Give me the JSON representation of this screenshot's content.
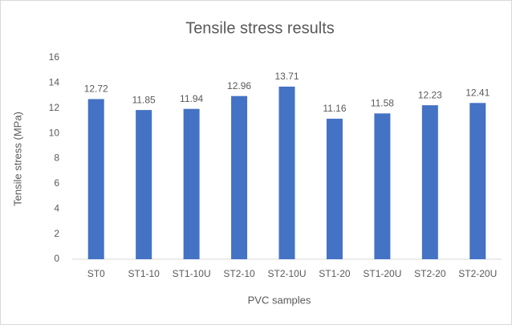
{
  "chart_data": {
    "type": "bar",
    "title": "Tensile stress results",
    "x_label": "PVC samples",
    "y_label": "Tensile stress (MPa)",
    "categories": [
      "ST0",
      "ST1-10",
      "ST1-10U",
      "ST2-10",
      "ST2-10U",
      "ST1-20",
      "ST1-20U",
      "ST2-20",
      "ST2-20U"
    ],
    "values": [
      12.72,
      11.85,
      11.94,
      12.96,
      13.71,
      11.16,
      11.58,
      12.23,
      12.41
    ],
    "color": "#4472c4",
    "ylim": [
      0,
      16
    ],
    "yticks": [
      0,
      2,
      4,
      6,
      8,
      10,
      12,
      14,
      16
    ],
    "grid": false
  }
}
